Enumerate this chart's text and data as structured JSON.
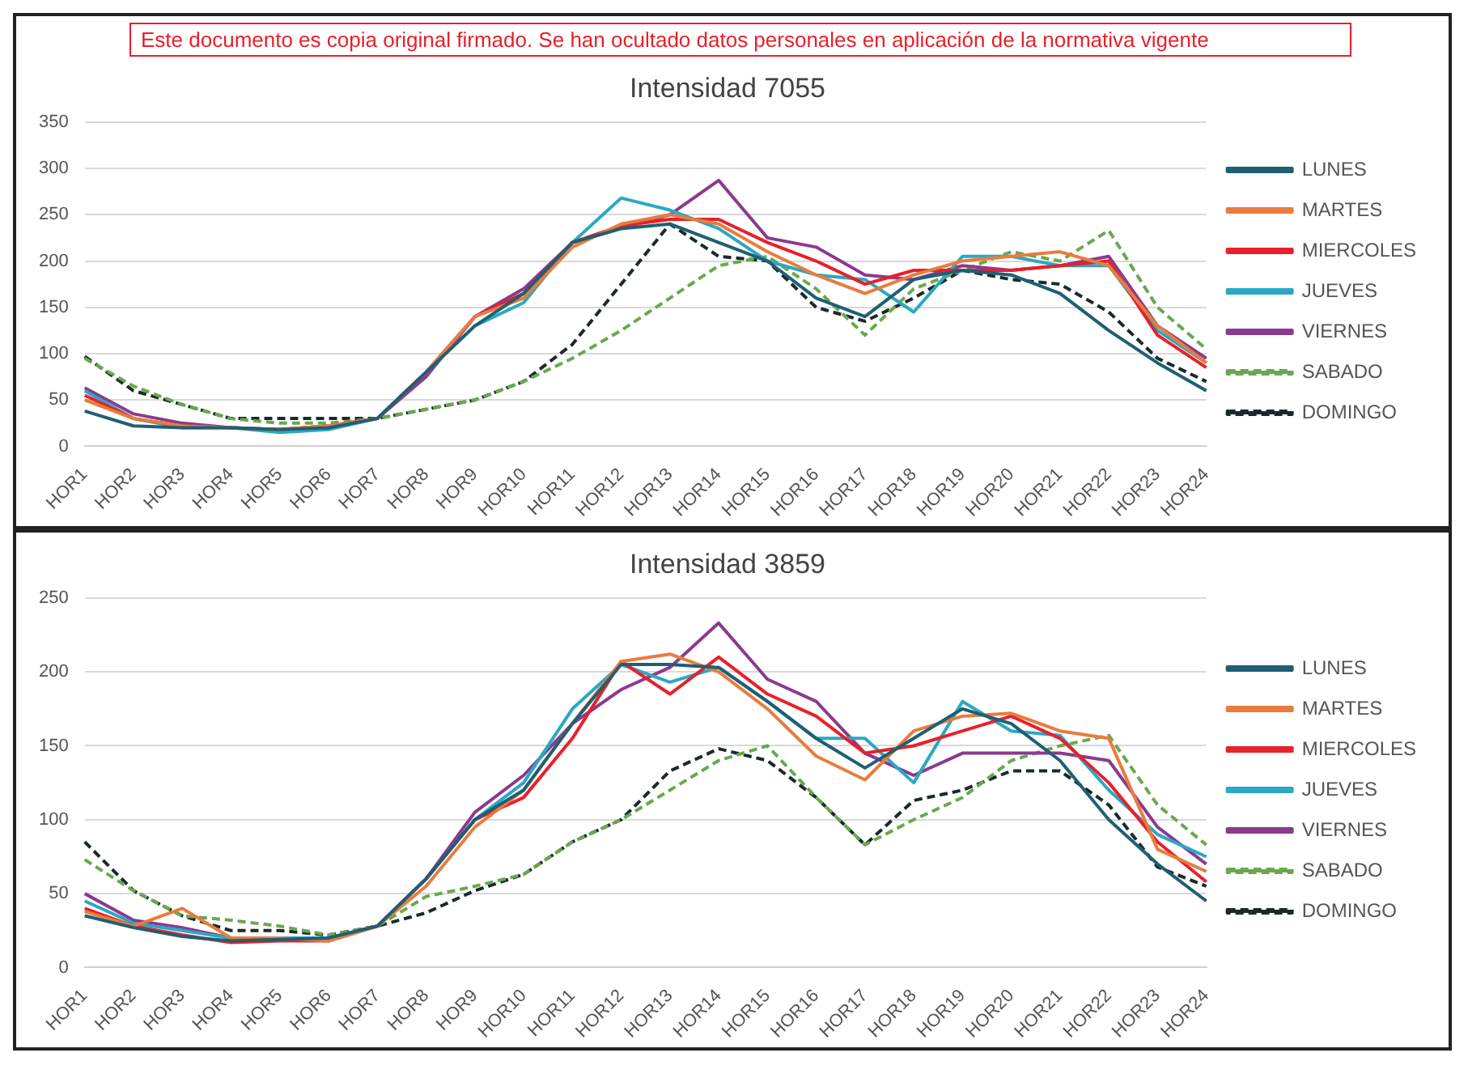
{
  "chart_data": [
    {
      "type": "line",
      "title": "Intensidad 7055",
      "categories": [
        "HOR1",
        "HOR2",
        "HOR3",
        "HOR4",
        "HOR5",
        "HOR6",
        "HOR7",
        "HOR8",
        "HOR9",
        "HOR10",
        "HOR11",
        "HOR12",
        "HOR13",
        "HOR14",
        "HOR15",
        "HOR16",
        "HOR17",
        "HOR18",
        "HOR19",
        "HOR20",
        "HOR21",
        "HOR22",
        "HOR23",
        "HOR24"
      ],
      "ylim": [
        0,
        350
      ],
      "yticks": [
        0,
        50,
        100,
        150,
        200,
        250,
        300,
        350
      ],
      "grid": "y",
      "legend": "right",
      "marker": "none",
      "annotations": [
        "Este documento es copia original firmado. Se han ocultado datos personales en aplicación de la normativa vigente"
      ],
      "series": [
        {
          "name": "LUNES",
          "color": "#1f5f73",
          "values": [
            38,
            22,
            20,
            20,
            18,
            20,
            30,
            80,
            130,
            165,
            220,
            235,
            240,
            220,
            200,
            160,
            140,
            180,
            190,
            185,
            165,
            125,
            90,
            60
          ]
        },
        {
          "name": "MARTES",
          "color": "#e97c3c",
          "values": [
            50,
            30,
            22,
            20,
            18,
            22,
            30,
            80,
            140,
            160,
            215,
            240,
            250,
            240,
            210,
            185,
            165,
            185,
            200,
            205,
            210,
            195,
            130,
            90
          ]
        },
        {
          "name": "MIERCOLES",
          "color": "#e8202a",
          "values": [
            55,
            30,
            22,
            20,
            18,
            22,
            30,
            80,
            140,
            165,
            220,
            238,
            245,
            245,
            220,
            200,
            175,
            190,
            190,
            190,
            195,
            200,
            120,
            85
          ]
        },
        {
          "name": "JUEVES",
          "color": "#2aa8c4",
          "values": [
            60,
            30,
            20,
            20,
            15,
            18,
            30,
            80,
            130,
            155,
            220,
            268,
            255,
            235,
            200,
            185,
            180,
            145,
            205,
            205,
            195,
            195,
            125,
            90
          ]
        },
        {
          "name": "VIERNES",
          "color": "#8b3a8f",
          "values": [
            63,
            35,
            25,
            20,
            18,
            22,
            30,
            75,
            140,
            170,
            220,
            235,
            250,
            287,
            225,
            215,
            185,
            180,
            195,
            190,
            195,
            205,
            130,
            95
          ]
        },
        {
          "name": "SABADO",
          "color": "#6aa84f",
          "line_style": "dashed",
          "values": [
            95,
            65,
            45,
            30,
            25,
            25,
            30,
            40,
            50,
            70,
            95,
            125,
            160,
            195,
            205,
            170,
            120,
            170,
            190,
            210,
            200,
            233,
            150,
            105
          ]
        },
        {
          "name": "DOMINGO",
          "color": "#1a2a2a",
          "line_style": "dashed",
          "values": [
            97,
            60,
            45,
            30,
            30,
            30,
            30,
            40,
            50,
            70,
            110,
            175,
            240,
            205,
            200,
            150,
            135,
            160,
            190,
            180,
            175,
            145,
            95,
            70
          ]
        }
      ]
    },
    {
      "type": "line",
      "title": "Intensidad 3859",
      "categories": [
        "HOR1",
        "HOR2",
        "HOR3",
        "HOR4",
        "HOR5",
        "HOR6",
        "HOR7",
        "HOR8",
        "HOR9",
        "HOR10",
        "HOR11",
        "HOR12",
        "HOR13",
        "HOR14",
        "HOR15",
        "HOR16",
        "HOR17",
        "HOR18",
        "HOR19",
        "HOR20",
        "HOR21",
        "HOR22",
        "HOR23",
        "HOR24"
      ],
      "ylim": [
        0,
        250
      ],
      "yticks": [
        0,
        50,
        100,
        150,
        200,
        250
      ],
      "grid": "y",
      "legend": "right",
      "marker": "none",
      "series": [
        {
          "name": "LUNES",
          "color": "#1f5f73",
          "values": [
            35,
            27,
            21,
            18,
            19,
            20,
            28,
            60,
            100,
            120,
            165,
            205,
            205,
            203,
            180,
            155,
            135,
            155,
            175,
            165,
            140,
            100,
            70,
            45
          ]
        },
        {
          "name": "MARTES",
          "color": "#e97c3c",
          "values": [
            38,
            28,
            40,
            20,
            20,
            18,
            28,
            55,
            95,
            120,
            165,
            207,
            212,
            200,
            175,
            143,
            127,
            160,
            170,
            172,
            160,
            155,
            80,
            65
          ]
        },
        {
          "name": "MIERCOLES",
          "color": "#e8202a",
          "values": [
            40,
            28,
            22,
            17,
            18,
            18,
            28,
            60,
            100,
            115,
            155,
            207,
            185,
            210,
            185,
            170,
            145,
            150,
            160,
            170,
            155,
            125,
            85,
            58
          ]
        },
        {
          "name": "JUEVES",
          "color": "#2aa8c4",
          "values": [
            45,
            30,
            25,
            20,
            20,
            20,
            28,
            60,
            100,
            125,
            175,
            205,
            193,
            203,
            180,
            155,
            155,
            125,
            180,
            160,
            157,
            120,
            90,
            75
          ]
        },
        {
          "name": "VIERNES",
          "color": "#8b3a8f",
          "values": [
            50,
            32,
            27,
            20,
            20,
            20,
            28,
            60,
            105,
            130,
            165,
            188,
            203,
            233,
            195,
            180,
            145,
            130,
            145,
            145,
            145,
            140,
            95,
            70
          ]
        },
        {
          "name": "SABADO",
          "color": "#6aa84f",
          "line_style": "dashed",
          "values": [
            73,
            52,
            35,
            32,
            28,
            22,
            28,
            48,
            55,
            63,
            85,
            100,
            120,
            140,
            150,
            115,
            83,
            100,
            115,
            140,
            150,
            157,
            110,
            83
          ]
        },
        {
          "name": "DOMINGO",
          "color": "#1a2a2a",
          "line_style": "dashed",
          "values": [
            85,
            52,
            35,
            25,
            25,
            22,
            28,
            37,
            52,
            63,
            85,
            100,
            133,
            148,
            140,
            115,
            83,
            113,
            120,
            133,
            133,
            110,
            68,
            55
          ]
        }
      ]
    }
  ]
}
